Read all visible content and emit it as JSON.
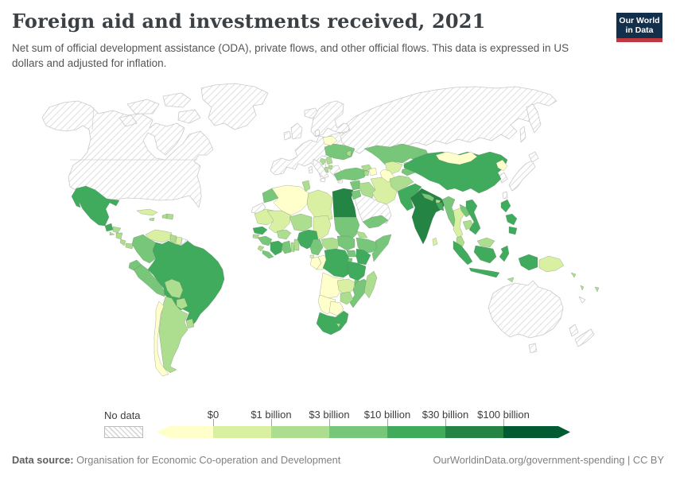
{
  "header": {
    "title": "Foreign aid and investments received, 2021",
    "subtitle": "Net sum of official development assistance (ODA), private flows, and other official flows. This data is expressed in US dollars and adjusted for inflation.",
    "logo": {
      "line1": "Our World",
      "line2": "in Data",
      "bg_color": "#12304c",
      "accent_color": "#c0373f"
    }
  },
  "legend": {
    "no_data_label": "No data",
    "tick_labels": [
      "$0",
      "$1 billion",
      "$3 billion",
      "$10 billion",
      "$30 billion",
      "$100 billion"
    ],
    "colors": [
      "#ffffcc",
      "#d9f0a3",
      "#addd8e",
      "#78c679",
      "#41ab5d",
      "#238443",
      "#005a32"
    ],
    "hatch_line_color": "#d6d6d6"
  },
  "footer": {
    "source_label": "Data source:",
    "source_text": " Organisation for Economic Co-operation and Development",
    "link_text": "OurWorldinData.org/government-spending | CC BY"
  },
  "chart_data": {
    "type": "choropleth-world-map",
    "title": "Foreign aid and investments received, 2021",
    "year": 2021,
    "unit": "US dollars, adjusted for inflation",
    "legend_position": "bottom",
    "bucket_labels": [
      "Less than $0",
      "$0 to $1 billion",
      "$1 to $3 billion",
      "$3 to $10 billion",
      "$10 to $30 billion",
      "$30 to $100 billion",
      "More than $100 billion"
    ],
    "no_data_regions": [
      "United States",
      "Canada",
      "Greenland",
      "Iceland",
      "Western and Central Europe",
      "Russia",
      "Saudi Arabia and Gulf states",
      "Israel",
      "Japan",
      "South Korea",
      "Taiwan",
      "Australia",
      "New Zealand",
      "Western Sahara",
      "French Guiana",
      "New Caledonia"
    ],
    "countries": [
      {
        "id": "mexico",
        "name": "Mexico",
        "bucket": 4
      },
      {
        "id": "guatemala",
        "name": "Guatemala",
        "bucket": 4
      },
      {
        "id": "honduras",
        "name": "Honduras",
        "bucket": 2
      },
      {
        "id": "el-salvador",
        "name": "El Salvador",
        "bucket": 2
      },
      {
        "id": "nicaragua",
        "name": "Nicaragua",
        "bucket": 2
      },
      {
        "id": "costa-rica",
        "name": "Costa Rica",
        "bucket": 2
      },
      {
        "id": "panama",
        "name": "Panama",
        "bucket": 2
      },
      {
        "id": "cuba",
        "name": "Cuba",
        "bucket": 1
      },
      {
        "id": "jamaica",
        "name": "Jamaica",
        "bucket": 2
      },
      {
        "id": "haiti",
        "name": "Haiti",
        "bucket": 2
      },
      {
        "id": "dominican-republic",
        "name": "Dominican Republic",
        "bucket": 2
      },
      {
        "id": "venezuela",
        "name": "Venezuela",
        "bucket": 1
      },
      {
        "id": "guyana",
        "name": "Guyana",
        "bucket": 2
      },
      {
        "id": "suriname",
        "name": "Suriname",
        "bucket": 1
      },
      {
        "id": "colombia",
        "name": "Colombia",
        "bucket": 3
      },
      {
        "id": "ecuador",
        "name": "Ecuador",
        "bucket": 3
      },
      {
        "id": "peru",
        "name": "Peru",
        "bucket": 3
      },
      {
        "id": "brazil",
        "name": "Brazil",
        "bucket": 4
      },
      {
        "id": "bolivia",
        "name": "Bolivia",
        "bucket": 2
      },
      {
        "id": "paraguay",
        "name": "Paraguay",
        "bucket": 2
      },
      {
        "id": "uruguay",
        "name": "Uruguay",
        "bucket": 2
      },
      {
        "id": "argentina",
        "name": "Argentina",
        "bucket": 2
      },
      {
        "id": "chile",
        "name": "Chile",
        "bucket": 0
      },
      {
        "id": "morocco",
        "name": "Morocco",
        "bucket": 3
      },
      {
        "id": "algeria",
        "name": "Algeria",
        "bucket": 0
      },
      {
        "id": "tunisia",
        "name": "Tunisia",
        "bucket": 2
      },
      {
        "id": "libya",
        "name": "Libya",
        "bucket": 1
      },
      {
        "id": "egypt",
        "name": "Egypt",
        "bucket": 5
      },
      {
        "id": "mauritania",
        "name": "Mauritania",
        "bucket": 1
      },
      {
        "id": "mali",
        "name": "Mali",
        "bucket": 1
      },
      {
        "id": "niger",
        "name": "Niger",
        "bucket": 2
      },
      {
        "id": "chad",
        "name": "Chad",
        "bucket": 1
      },
      {
        "id": "sudan",
        "name": "Sudan",
        "bucket": 3
      },
      {
        "id": "eritrea",
        "name": "Eritrea",
        "bucket": 2
      },
      {
        "id": "ethiopia",
        "name": "Ethiopia",
        "bucket": 3
      },
      {
        "id": "somalia",
        "name": "Somalia",
        "bucket": 3
      },
      {
        "id": "senegal",
        "name": "Senegal",
        "bucket": 4
      },
      {
        "id": "guinea-bissau",
        "name": "Guinea-Bissau",
        "bucket": 2
      },
      {
        "id": "guinea",
        "name": "Guinea",
        "bucket": 3
      },
      {
        "id": "sierra-leone",
        "name": "Sierra Leone",
        "bucket": 2
      },
      {
        "id": "liberia",
        "name": "Liberia",
        "bucket": 3
      },
      {
        "id": "cote-divoire",
        "name": "Cote d'Ivoire",
        "bucket": 4
      },
      {
        "id": "burkina-faso",
        "name": "Burkina Faso",
        "bucket": 2
      },
      {
        "id": "ghana",
        "name": "Ghana",
        "bucket": 3
      },
      {
        "id": "togo",
        "name": "Togo",
        "bucket": 2
      },
      {
        "id": "benin",
        "name": "Benin",
        "bucket": 2
      },
      {
        "id": "nigeria",
        "name": "Nigeria",
        "bucket": 4
      },
      {
        "id": "cameroon",
        "name": "Cameroon",
        "bucket": 3
      },
      {
        "id": "central-african-republic",
        "name": "Central African Republic",
        "bucket": 2
      },
      {
        "id": "south-sudan",
        "name": "South Sudan",
        "bucket": 3
      },
      {
        "id": "equatorial-guinea",
        "name": "Equatorial Guinea",
        "bucket": 1
      },
      {
        "id": "gabon",
        "name": "Gabon",
        "bucket": 0
      },
      {
        "id": "congo",
        "name": "Congo",
        "bucket": 0
      },
      {
        "id": "drc",
        "name": "Democratic Republic of Congo",
        "bucket": 4
      },
      {
        "id": "uganda",
        "name": "Uganda",
        "bucket": 3
      },
      {
        "id": "kenya",
        "name": "Kenya",
        "bucket": 4
      },
      {
        "id": "rwanda",
        "name": "Rwanda",
        "bucket": 3
      },
      {
        "id": "tanzania",
        "name": "Tanzania",
        "bucket": 4
      },
      {
        "id": "angola",
        "name": "Angola",
        "bucket": 0
      },
      {
        "id": "zambia",
        "name": "Zambia",
        "bucket": 1
      },
      {
        "id": "malawi",
        "name": "Malawi",
        "bucket": 3
      },
      {
        "id": "mozambique",
        "name": "Mozambique",
        "bucket": 3
      },
      {
        "id": "zimbabwe",
        "name": "Zimbabwe",
        "bucket": 2
      },
      {
        "id": "namibia",
        "name": "Namibia",
        "bucket": 0
      },
      {
        "id": "botswana",
        "name": "Botswana",
        "bucket": 0
      },
      {
        "id": "south-africa",
        "name": "South Africa",
        "bucket": 4
      },
      {
        "id": "lesotho",
        "name": "Lesotho",
        "bucket": 2
      },
      {
        "id": "madagascar",
        "name": "Madagascar",
        "bucket": 2
      },
      {
        "id": "turkey",
        "name": "Turkey",
        "bucket": 3
      },
      {
        "id": "syria",
        "name": "Syria",
        "bucket": 3
      },
      {
        "id": "jordan",
        "name": "Jordan",
        "bucket": 3
      },
      {
        "id": "iraq",
        "name": "Iraq",
        "bucket": 2
      },
      {
        "id": "iran",
        "name": "Iran",
        "bucket": 1
      },
      {
        "id": "yemen",
        "name": "Yemen",
        "bucket": 3
      },
      {
        "id": "georgia",
        "name": "Georgia",
        "bucket": 2
      },
      {
        "id": "armenia",
        "name": "Armenia",
        "bucket": 2
      },
      {
        "id": "azerbaijan",
        "name": "Azerbaijan",
        "bucket": 0
      },
      {
        "id": "ukraine",
        "name": "Ukraine",
        "bucket": 3
      },
      {
        "id": "belarus",
        "name": "Belarus",
        "bucket": 0
      },
      {
        "id": "moldova",
        "name": "Moldova",
        "bucket": 2
      },
      {
        "id": "serbia",
        "name": "Serbia",
        "bucket": 2
      },
      {
        "id": "bosnia",
        "name": "Bosnia and Herzegovina",
        "bucket": 2
      },
      {
        "id": "albania",
        "name": "Albania",
        "bucket": 2
      },
      {
        "id": "north-macedonia",
        "name": "North Macedonia",
        "bucket": 2
      },
      {
        "id": "kazakhstan",
        "name": "Kazakhstan",
        "bucket": 3
      },
      {
        "id": "uzbekistan",
        "name": "Uzbekistan",
        "bucket": 1
      },
      {
        "id": "turkmenistan",
        "name": "Turkmenistan",
        "bucket": 0
      },
      {
        "id": "kyrgyzstan",
        "name": "Kyrgyzstan",
        "bucket": 2
      },
      {
        "id": "tajikistan",
        "name": "Tajikistan",
        "bucket": 3
      },
      {
        "id": "afghanistan",
        "name": "Afghanistan",
        "bucket": 2
      },
      {
        "id": "pakistan",
        "name": "Pakistan",
        "bucket": 4
      },
      {
        "id": "india",
        "name": "India",
        "bucket": 5
      },
      {
        "id": "nepal",
        "name": "Nepal",
        "bucket": 3
      },
      {
        "id": "bhutan",
        "name": "Bhutan",
        "bucket": 2
      },
      {
        "id": "bangladesh",
        "name": "Bangladesh",
        "bucket": 4
      },
      {
        "id": "sri-lanka",
        "name": "Sri Lanka",
        "bucket": 1
      },
      {
        "id": "china",
        "name": "China",
        "bucket": 4
      },
      {
        "id": "mongolia",
        "name": "Mongolia",
        "bucket": 0
      },
      {
        "id": "north-korea",
        "name": "North Korea",
        "bucket": 0
      },
      {
        "id": "myanmar",
        "name": "Myanmar",
        "bucket": 3
      },
      {
        "id": "thailand",
        "name": "Thailand",
        "bucket": 1
      },
      {
        "id": "laos",
        "name": "Laos",
        "bucket": 3
      },
      {
        "id": "cambodia",
        "name": "Cambodia",
        "bucket": 2
      },
      {
        "id": "vietnam",
        "name": "Vietnam",
        "bucket": 4
      },
      {
        "id": "malaysia",
        "name": "Malaysia",
        "bucket": 2
      },
      {
        "id": "indonesia",
        "name": "Indonesia",
        "bucket": 4
      },
      {
        "id": "philippines",
        "name": "Philippines",
        "bucket": 4
      },
      {
        "id": "timor-leste",
        "name": "Timor-Leste",
        "bucket": 2
      },
      {
        "id": "papua-new-guinea",
        "name": "Papua New Guinea",
        "bucket": 1
      },
      {
        "id": "solomon-islands",
        "name": "Solomon Islands",
        "bucket": 2
      },
      {
        "id": "vanuatu",
        "name": "Vanuatu",
        "bucket": 2
      },
      {
        "id": "fiji",
        "name": "Fiji",
        "bucket": 2
      }
    ]
  }
}
